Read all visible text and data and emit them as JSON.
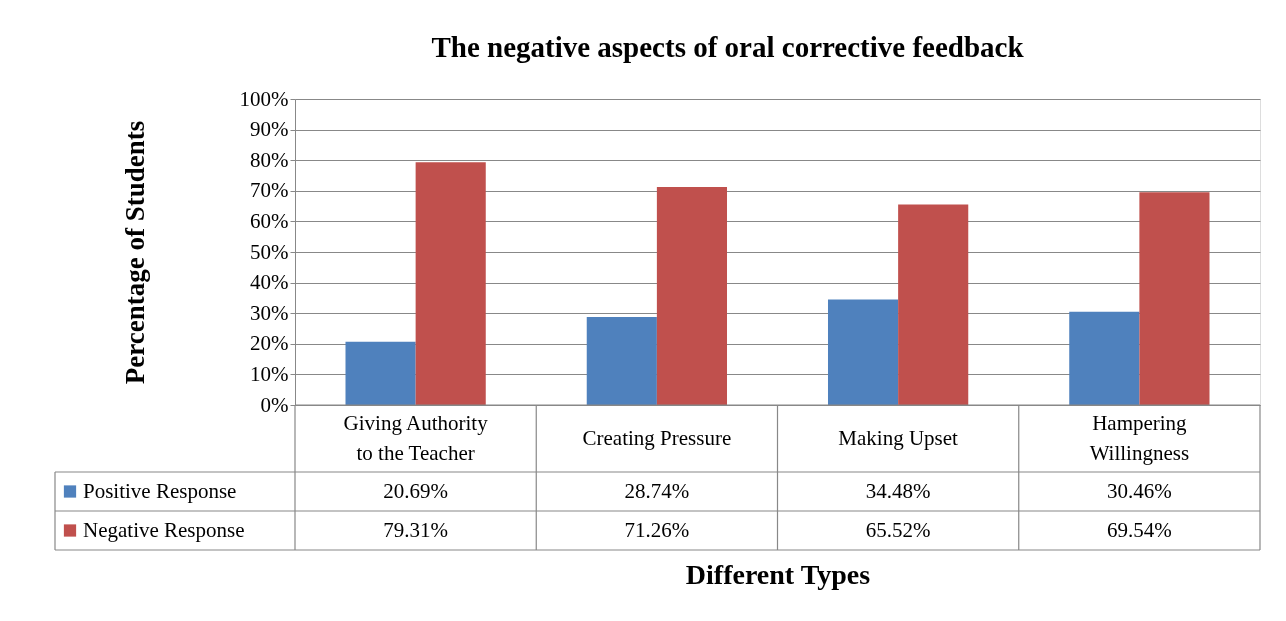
{
  "chart_data": {
    "type": "bar",
    "title": "The negative aspects of oral corrective feedback",
    "xlabel": "Different Types",
    "ylabel": "Percentage of Students",
    "categories": [
      "Giving Authority to the Teacher",
      "Creating Pressure",
      "Making Upset",
      "Hampering Willingness"
    ],
    "series": [
      {
        "name": "Positive Response",
        "color": "#4f81bd",
        "values": [
          20.69,
          28.74,
          34.48,
          30.46
        ],
        "value_labels": [
          "20.69%",
          "28.74%",
          "34.48%",
          "30.46%"
        ]
      },
      {
        "name": "Negative Response",
        "color": "#c0504d",
        "values": [
          79.31,
          71.26,
          65.52,
          69.54
        ],
        "value_labels": [
          "79.31%",
          "71.26%",
          "65.52%",
          "69.54%"
        ]
      }
    ],
    "ylim": [
      0,
      100
    ],
    "yticks": [
      {
        "value": 0,
        "label": "0%"
      },
      {
        "value": 10,
        "label": "10%"
      },
      {
        "value": 20,
        "label": "20%"
      },
      {
        "value": 30,
        "label": "30%"
      },
      {
        "value": 40,
        "label": "40%"
      },
      {
        "value": 50,
        "label": "50%"
      },
      {
        "value": 60,
        "label": "60%"
      },
      {
        "value": 70,
        "label": "70%"
      },
      {
        "value": 80,
        "label": "80%"
      },
      {
        "value": 90,
        "label": "90%"
      },
      {
        "value": 100,
        "label": "100%"
      }
    ],
    "grid": "y",
    "legend": "bottom left"
  }
}
